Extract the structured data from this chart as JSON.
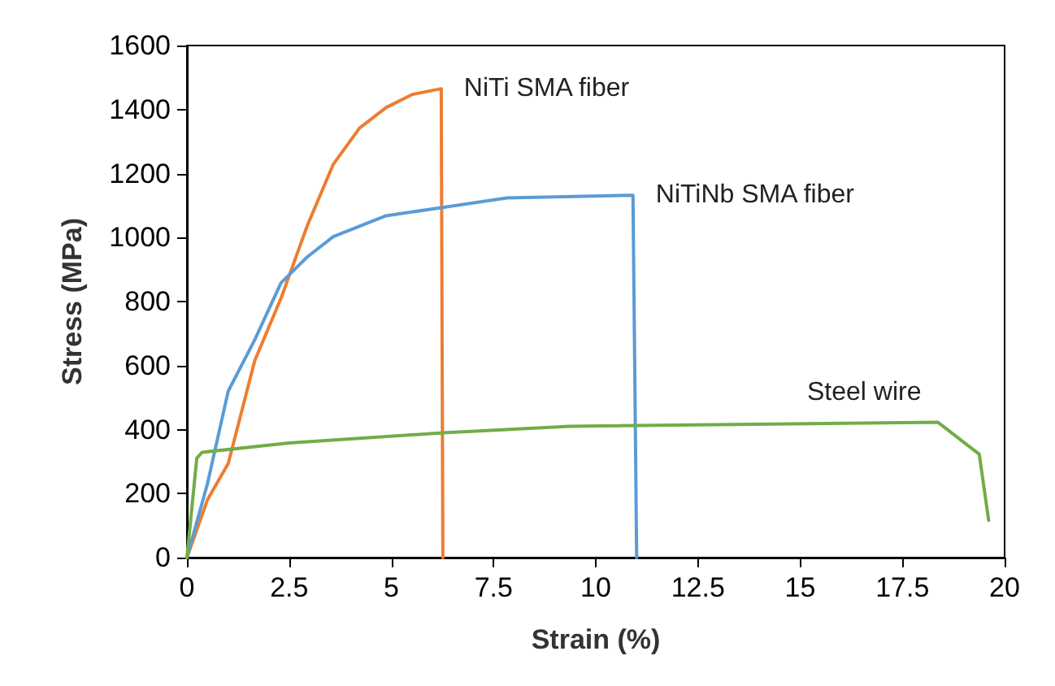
{
  "chart_data": {
    "type": "line",
    "xlabel": "Strain (%)",
    "ylabel": "Stress (MPa)",
    "xlim": [
      0,
      20
    ],
    "xticks": [
      0,
      2.5,
      5,
      7.5,
      10,
      12.5,
      15,
      17.5,
      20
    ],
    "ylim": [
      0,
      1600
    ],
    "yticks": [
      0,
      200,
      400,
      600,
      800,
      1000,
      1200,
      1400,
      1600
    ],
    "grid": false,
    "marker": "none",
    "line_style": "solid",
    "series": [
      {
        "name": "NiTi SMA fiber",
        "color": "#ed7d31",
        "x": [
          0,
          0.5,
          1.01,
          1.66,
          2.3,
          2.94,
          3.58,
          4.22,
          4.87,
          5.51,
          6.22,
          6.26
        ],
        "values": [
          0,
          180,
          294,
          616,
          810,
          1036,
          1229,
          1342,
          1406,
          1447,
          1465,
          0
        ]
      },
      {
        "name": "NiTiNb SMA fiber",
        "color": "#5b9bd5",
        "x": [
          0,
          0.5,
          1.01,
          1.66,
          2.3,
          2.94,
          3.58,
          4.87,
          6.15,
          7.83,
          10.91,
          11.0
        ],
        "values": [
          0,
          230,
          520,
          681,
          858,
          939,
          1003,
          1068,
          1092,
          1124,
          1132,
          0
        ]
      },
      {
        "name": "Steel wire",
        "color": "#70ad47",
        "x": [
          0,
          0.24,
          0.37,
          2.5,
          6.26,
          9.36,
          18.36,
          18.5,
          19.38,
          19.61
        ],
        "values": [
          0,
          310,
          329,
          358,
          390,
          410,
          423,
          410,
          323,
          116
        ]
      }
    ]
  }
}
